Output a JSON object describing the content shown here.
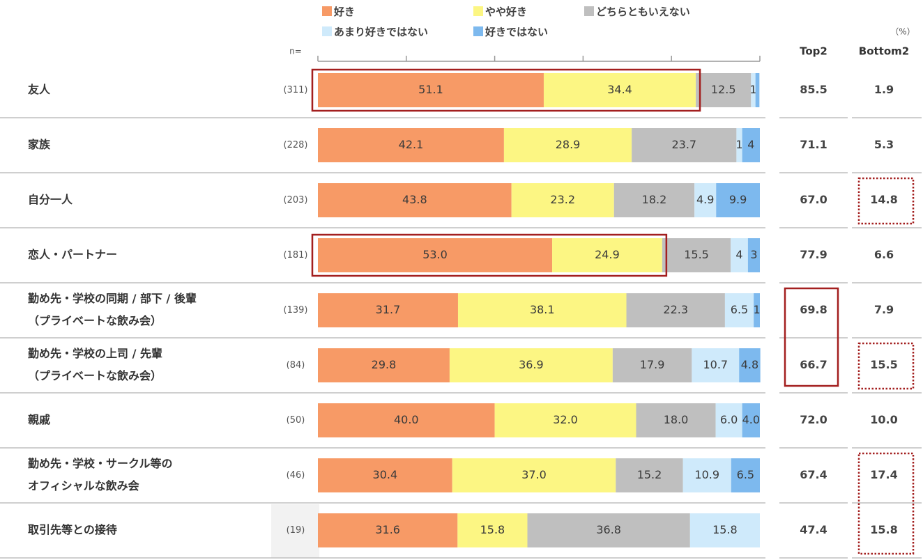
{
  "chart_data": {
    "type": "stacked-bar-100",
    "unit_label": "（%）",
    "n_label": "n=",
    "legend": [
      {
        "name": "好き",
        "color": "#F79A66"
      },
      {
        "name": "やや好き",
        "color": "#FCF683"
      },
      {
        "name": "どちらともいえない",
        "color": "#BFBFBF"
      },
      {
        "name": "あまり好きではない",
        "color": "#CFEAFB"
      },
      {
        "name": "好きではない",
        "color": "#7DB9EE"
      }
    ],
    "summary_headers": [
      "Top2",
      "Bottom2"
    ],
    "rows": [
      {
        "label": [
          "友人"
        ],
        "n": "(311)",
        "values": [
          51.1,
          34.4,
          12.5,
          1.0,
          0.9
        ],
        "labels": [
          "51.1",
          "34.4",
          "12.5",
          "1",
          ""
        ],
        "top2": "85.5",
        "bottom2": "1.9"
      },
      {
        "label": [
          "家族"
        ],
        "n": "(228)",
        "values": [
          42.1,
          28.9,
          23.7,
          1.3,
          4.0
        ],
        "labels": [
          "42.1",
          "28.9",
          "23.7",
          "1",
          "4"
        ],
        "top2": "71.1",
        "bottom2": "5.3"
      },
      {
        "label": [
          "自分一人"
        ],
        "n": "(203)",
        "values": [
          43.8,
          23.2,
          18.2,
          4.9,
          9.9
        ],
        "labels": [
          "43.8",
          "23.2",
          "18.2",
          "4.9",
          "9.9"
        ],
        "top2": "67.0",
        "bottom2": "14.8"
      },
      {
        "label": [
          "恋人・パートナー"
        ],
        "n": "(181)",
        "values": [
          53.0,
          24.9,
          15.5,
          3.9,
          2.7
        ],
        "labels": [
          "53.0",
          "24.9",
          "15.5",
          "4",
          "3"
        ],
        "top2": "77.9",
        "bottom2": "6.6"
      },
      {
        "label": [
          "勤め先・学校の同期 / 部下 / 後輩",
          "（プライベートな飲み会）"
        ],
        "n": "(139)",
        "values": [
          31.7,
          38.1,
          22.3,
          6.5,
          1.4
        ],
        "labels": [
          "31.7",
          "38.1",
          "22.3",
          "6.5",
          "1"
        ],
        "top2": "69.8",
        "bottom2": "7.9"
      },
      {
        "label": [
          "勤め先・学校の上司 / 先輩",
          "（プライベートな飲み会）"
        ],
        "n": "(84)",
        "values": [
          29.8,
          36.9,
          17.9,
          10.7,
          4.8
        ],
        "labels": [
          "29.8",
          "36.9",
          "17.9",
          "10.7",
          "4.8"
        ],
        "top2": "66.7",
        "bottom2": "15.5"
      },
      {
        "label": [
          "親戚"
        ],
        "n": "(50)",
        "values": [
          40.0,
          32.0,
          18.0,
          6.0,
          4.0
        ],
        "labels": [
          "40.0",
          "32.0",
          "18.0",
          "6.0",
          "4.0"
        ],
        "top2": "72.0",
        "bottom2": "10.0"
      },
      {
        "label": [
          "勤め先・学校・サークル等の",
          "オフィシャルな飲み会"
        ],
        "n": "(46)",
        "values": [
          30.4,
          37.0,
          15.2,
          10.9,
          6.5
        ],
        "labels": [
          "30.4",
          "37.0",
          "15.2",
          "10.9",
          "6.5"
        ],
        "top2": "67.4",
        "bottom2": "17.4"
      },
      {
        "label": [
          "取引先等との接待"
        ],
        "n": "(19)",
        "values": [
          31.6,
          15.8,
          36.8,
          15.8,
          0.0
        ],
        "labels": [
          "31.6",
          "15.8",
          "36.8",
          "15.8",
          ""
        ],
        "top2": "47.4",
        "bottom2": "15.8"
      }
    ],
    "highlights": {
      "top2_bar_rows": [
        0,
        3
      ],
      "top2_column_rows": [
        4,
        5
      ],
      "bottom2_dotted_rows": [
        [
          2
        ],
        [
          5
        ],
        [
          7,
          8
        ]
      ]
    }
  }
}
